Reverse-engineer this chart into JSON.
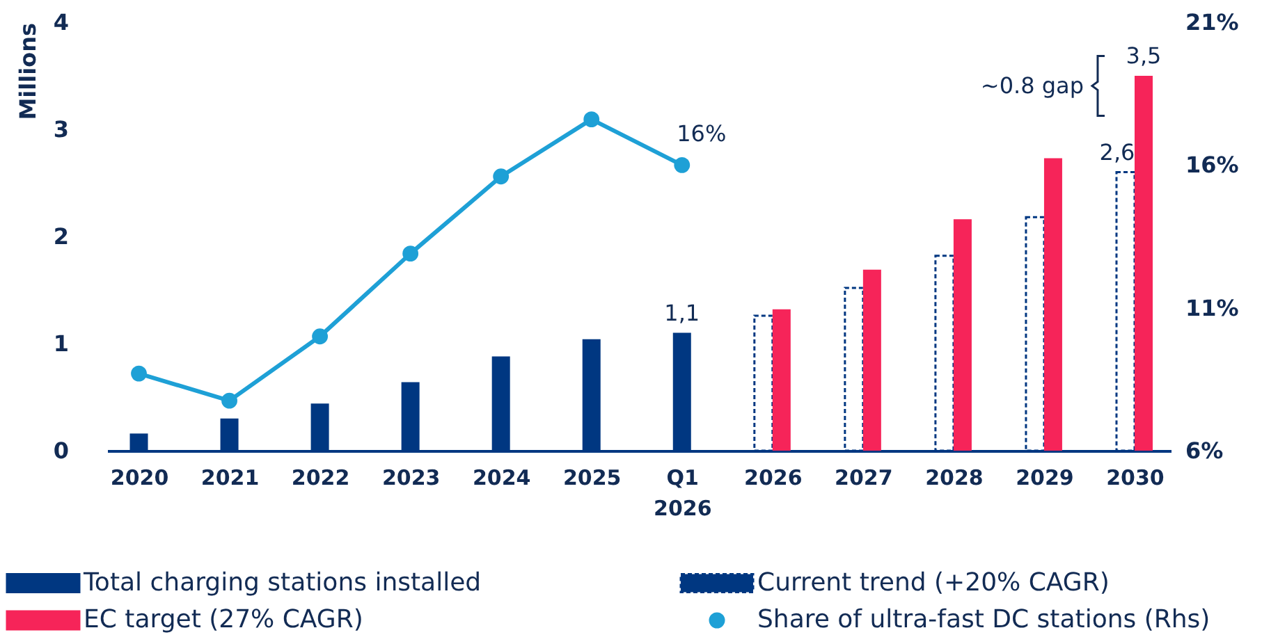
{
  "chart_data": {
    "type": "bar",
    "ylabel": "Millions",
    "categories": [
      "2020",
      "2021",
      "2022",
      "2023",
      "2024",
      "2025",
      "Q1 2026",
      "2026",
      "2027",
      "2028",
      "2029",
      "2030"
    ],
    "series": [
      {
        "name": "Total charging stations installed",
        "color": "#003781",
        "values": [
          0.16,
          0.3,
          0.44,
          0.64,
          0.88,
          1.04,
          1.1,
          null,
          null,
          null,
          null,
          null
        ],
        "value_labels": [
          null,
          null,
          null,
          null,
          null,
          null,
          "1,1",
          null,
          null,
          null,
          null,
          null
        ]
      },
      {
        "name": "Current trend (+20% CAGR)",
        "color": "#003781",
        "line_style": "dashed",
        "values": [
          null,
          null,
          null,
          null,
          null,
          null,
          null,
          1.26,
          1.52,
          1.82,
          2.18,
          2.6
        ],
        "value_labels": [
          null,
          null,
          null,
          null,
          null,
          null,
          null,
          null,
          null,
          null,
          null,
          "2,6"
        ]
      },
      {
        "name": "EC target (27% CAGR)",
        "color": "#f62459",
        "values": [
          null,
          null,
          null,
          null,
          null,
          null,
          null,
          1.32,
          1.69,
          2.16,
          2.73,
          3.5
        ],
        "value_labels": [
          null,
          null,
          null,
          null,
          null,
          null,
          null,
          null,
          null,
          null,
          null,
          "3,5"
        ]
      },
      {
        "name": "Share of ultra-fast DC stations (Rhs)",
        "type": "line",
        "axis": "y2",
        "color": "#1ea0d6",
        "values": [
          8.7,
          7.75,
          10.0,
          12.9,
          15.6,
          17.6,
          16,
          null,
          null,
          null,
          null,
          null
        ],
        "value_labels": [
          null,
          null,
          null,
          null,
          null,
          null,
          "16%",
          null,
          null,
          null,
          null,
          null
        ]
      }
    ],
    "ylim": [
      0,
      4
    ],
    "yticks": [
      0,
      1,
      2,
      3,
      4
    ],
    "y2lim": [
      6,
      21
    ],
    "y2ticks": [
      {
        "value": 6,
        "label": "6%"
      },
      {
        "value": 11,
        "label": "11%"
      },
      {
        "value": 16,
        "label": "16%"
      },
      {
        "value": 21,
        "label": "21%"
      }
    ],
    "annotations": [
      {
        "text": "~0.8 gap",
        "x": "2030",
        "y": 3.4
      }
    ],
    "marker": "circle",
    "line_style": "solid",
    "legend": "bottom"
  }
}
